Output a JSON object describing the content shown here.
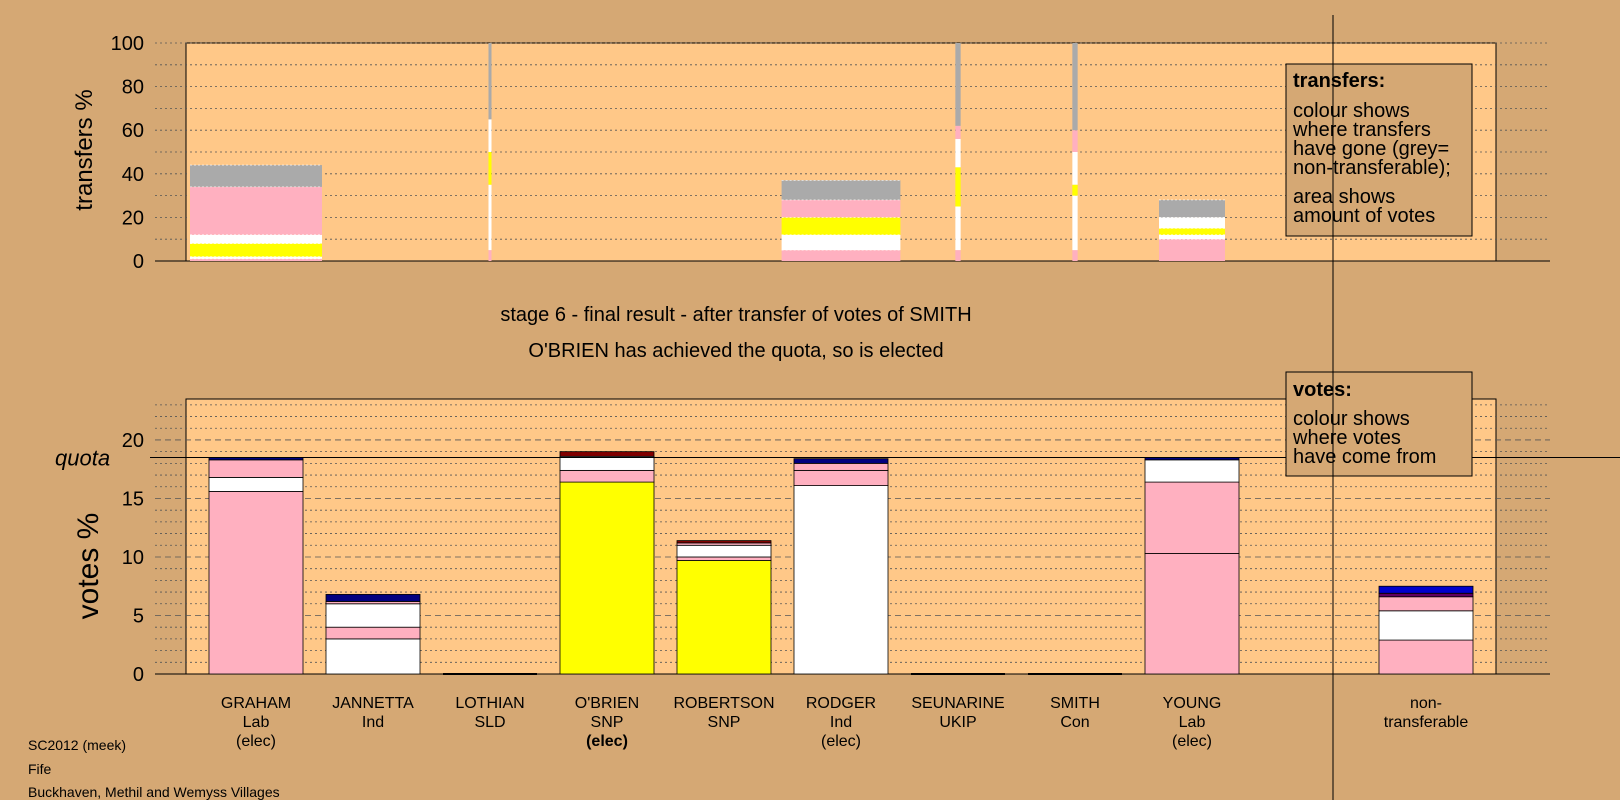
{
  "colors": {
    "page_bg": "#D5A874",
    "plot_bg": "#FFC888",
    "pink": "#FFB0C0",
    "white": "#FFFFFF",
    "yellow": "#FFFF00",
    "navy": "#000080",
    "blue": "#0000CC",
    "purple": "#600060",
    "grey": "#AAAAAA",
    "dark_red": "#800000"
  },
  "title": {
    "line1": "stage 6 - final result - after transfer of votes of SMITH",
    "line2": "O'BRIEN has achieved the quota, so is elected"
  },
  "footer": {
    "line1": "SC2012 (meek)",
    "line2": "Fife",
    "line3": "Buckhaven, Methil and Wemyss Villages"
  },
  "legend_transfers": {
    "heading": "transfers:",
    "body1": [
      "colour shows",
      "where transfers",
      "have gone (grey=",
      "non-transferable);"
    ],
    "body2": [
      "area shows",
      "amount of votes"
    ]
  },
  "legend_votes": {
    "heading": "votes:",
    "body": [
      "colour shows",
      "where votes",
      "have come from"
    ]
  },
  "candidates": [
    {
      "name": "GRAHAM",
      "party": "Lab",
      "status": "(elec)",
      "bold_status": false
    },
    {
      "name": "JANNETTA",
      "party": "Ind",
      "status": "",
      "bold_status": false
    },
    {
      "name": "LOTHIAN",
      "party": "SLD",
      "status": "",
      "bold_status": false
    },
    {
      "name": "O'BRIEN",
      "party": "SNP",
      "status": "(elec)",
      "bold_status": true
    },
    {
      "name": "ROBERTSON",
      "party": "SNP",
      "status": "",
      "bold_status": false
    },
    {
      "name": "RODGER",
      "party": "Ind",
      "status": "(elec)",
      "bold_status": false
    },
    {
      "name": "SEUNARINE",
      "party": "UKIP",
      "status": "",
      "bold_status": false
    },
    {
      "name": "SMITH",
      "party": "Con",
      "status": "",
      "bold_status": false
    },
    {
      "name": "YOUNG",
      "party": "Lab",
      "status": "(elec)",
      "bold_status": false
    }
  ],
  "nontransferable_label": [
    "non-",
    "transferable"
  ],
  "chart_data": [
    {
      "type": "bar",
      "name": "transfers",
      "ylabel": "transfers %",
      "ylim": [
        0,
        100
      ],
      "yticks": [
        0,
        20,
        40,
        60,
        80,
        100
      ],
      "categories": [
        "GRAHAM",
        "JANNETTA",
        "LOTHIAN",
        "O'BRIEN",
        "ROBERTSON",
        "RODGER",
        "SEUNARINE",
        "SMITH",
        "YOUNG"
      ],
      "bars": [
        {
          "candidate": "GRAHAM",
          "width": 1.0,
          "segments": [
            {
              "color": "pink",
              "value": 1
            },
            {
              "color": "white",
              "value": 1
            },
            {
              "color": "yellow",
              "value": 6
            },
            {
              "color": "white",
              "value": 4
            },
            {
              "color": "pink",
              "value": 22
            },
            {
              "color": "grey",
              "value": 10
            }
          ]
        },
        {
          "candidate": "LOTHIAN",
          "width": 0.02,
          "segments": [
            {
              "color": "pink",
              "value": 5
            },
            {
              "color": "white",
              "value": 15
            },
            {
              "color": "white",
              "value": 15
            },
            {
              "color": "yellow",
              "value": 15
            },
            {
              "color": "white",
              "value": 15
            },
            {
              "color": "grey",
              "value": 35
            }
          ]
        },
        {
          "candidate": "RODGER",
          "width": 0.9,
          "segments": [
            {
              "color": "pink",
              "value": 5
            },
            {
              "color": "white",
              "value": 7
            },
            {
              "color": "yellow",
              "value": 8
            },
            {
              "color": "pink",
              "value": 8
            },
            {
              "color": "grey",
              "value": 9
            }
          ]
        },
        {
          "candidate": "SEUNARINE",
          "width": 0.04,
          "segments": [
            {
              "color": "pink",
              "value": 5
            },
            {
              "color": "white",
              "value": 20
            },
            {
              "color": "yellow",
              "value": 18
            },
            {
              "color": "white",
              "value": 13
            },
            {
              "color": "pink",
              "value": 6
            },
            {
              "color": "grey",
              "value": 38
            }
          ]
        },
        {
          "candidate": "SMITH",
          "width": 0.04,
          "segments": [
            {
              "color": "pink",
              "value": 5
            },
            {
              "color": "white",
              "value": 25
            },
            {
              "color": "yellow",
              "value": 5
            },
            {
              "color": "white",
              "value": 15
            },
            {
              "color": "pink",
              "value": 10
            },
            {
              "color": "grey",
              "value": 40
            }
          ]
        },
        {
          "candidate": "YOUNG",
          "width": 0.5,
          "segments": [
            {
              "color": "pink",
              "value": 10
            },
            {
              "color": "white",
              "value": 2
            },
            {
              "color": "yellow",
              "value": 3
            },
            {
              "color": "white",
              "value": 5
            },
            {
              "color": "grey",
              "value": 8
            }
          ]
        }
      ]
    },
    {
      "type": "bar",
      "name": "votes",
      "ylabel": "votes %",
      "ylim": [
        0,
        23.5
      ],
      "yticks": [
        0,
        5,
        10,
        15,
        20
      ],
      "quota": 18.5,
      "quota_label": "quota",
      "categories": [
        "GRAHAM",
        "JANNETTA",
        "LOTHIAN",
        "O'BRIEN",
        "ROBERTSON",
        "RODGER",
        "SEUNARINE",
        "SMITH",
        "YOUNG",
        "non-transferable"
      ],
      "bars": [
        {
          "candidate": "GRAHAM",
          "segments": [
            {
              "color": "pink",
              "value": 15.6
            },
            {
              "color": "white",
              "value": 1.2
            },
            {
              "color": "pink",
              "value": 1.5
            },
            {
              "color": "navy",
              "value": 0.2
            }
          ]
        },
        {
          "candidate": "JANNETTA",
          "segments": [
            {
              "color": "white",
              "value": 3.0
            },
            {
              "color": "pink",
              "value": 1.0
            },
            {
              "color": "white",
              "value": 2.0
            },
            {
              "color": "pink",
              "value": 0.2
            },
            {
              "color": "navy",
              "value": 0.6
            }
          ]
        },
        {
          "candidate": "LOTHIAN",
          "segments": []
        },
        {
          "candidate": "O'BRIEN",
          "segments": [
            {
              "color": "yellow",
              "value": 16.4
            },
            {
              "color": "pink",
              "value": 1.0
            },
            {
              "color": "white",
              "value": 1.2
            },
            {
              "color": "dark_red",
              "value": 0.4
            }
          ]
        },
        {
          "candidate": "ROBERTSON",
          "segments": [
            {
              "color": "yellow",
              "value": 9.7
            },
            {
              "color": "pink",
              "value": 0.3
            },
            {
              "color": "white",
              "value": 1.0
            },
            {
              "color": "pink",
              "value": 0.2
            },
            {
              "color": "dark_red",
              "value": 0.2
            }
          ]
        },
        {
          "candidate": "RODGER",
          "segments": [
            {
              "color": "white",
              "value": 16.1
            },
            {
              "color": "pink",
              "value": 1.3
            },
            {
              "color": "pink",
              "value": 0.6
            },
            {
              "color": "navy",
              "value": 0.4
            }
          ]
        },
        {
          "candidate": "SEUNARINE",
          "segments": []
        },
        {
          "candidate": "SMITH",
          "segments": []
        },
        {
          "candidate": "YOUNG",
          "segments": [
            {
              "color": "pink",
              "value": 10.3
            },
            {
              "color": "pink",
              "value": 6.1
            },
            {
              "color": "white",
              "value": 1.9
            },
            {
              "color": "navy",
              "value": 0.2
            }
          ]
        },
        {
          "candidate": "non-transferable",
          "segments": [
            {
              "color": "pink",
              "value": 2.9
            },
            {
              "color": "white",
              "value": 2.5
            },
            {
              "color": "pink",
              "value": 1.2
            },
            {
              "color": "purple",
              "value": 0.3
            },
            {
              "color": "blue",
              "value": 0.6
            }
          ]
        }
      ]
    }
  ]
}
